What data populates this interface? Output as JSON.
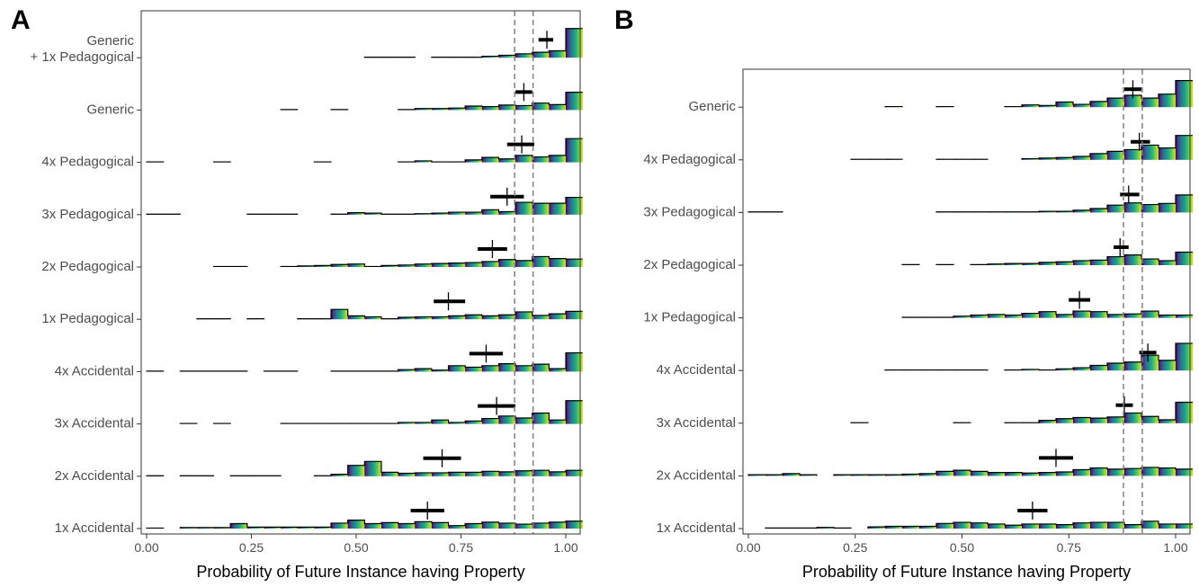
{
  "chart_data": [
    {
      "type": "histogram-ridgeline",
      "panel": "A",
      "xlabel": "Probability of Future Instance having Property",
      "xlim": [
        0,
        1.03
      ],
      "xticks": [
        0.0,
        0.25,
        0.5,
        0.75,
        1.0
      ],
      "xtick_labels": [
        "0.00",
        "0.25",
        "0.50",
        "0.75",
        "1.00"
      ],
      "reference_lines": [
        0.878,
        0.922
      ],
      "grid": false,
      "legend": "none",
      "bins": [
        0.0,
        0.04,
        0.08,
        0.12,
        0.16,
        0.2,
        0.24,
        0.28,
        0.32,
        0.36,
        0.4,
        0.44,
        0.48,
        0.52,
        0.56,
        0.6,
        0.64,
        0.68,
        0.72,
        0.76,
        0.8,
        0.84,
        0.88,
        0.92,
        0.96,
        1.0
      ],
      "bin_width": 0.04,
      "conditions": [
        {
          "label": "1x Accidental",
          "mean": 0.67,
          "ci": [
            0.63,
            0.71
          ],
          "heights": [
            0.1,
            0,
            0.2,
            0.2,
            0.2,
            1,
            0.3,
            0.3,
            0.3,
            0.3,
            0.3,
            1.1,
            1.7,
            1,
            1.2,
            1,
            1.4,
            1.2,
            0.6,
            1,
            1.3,
            1.1,
            0.9,
            1.1,
            1.3,
            1.5
          ]
        },
        {
          "label": "2x Accidental",
          "mean": 0.705,
          "ci": [
            0.66,
            0.75
          ],
          "heights": [
            0.1,
            0,
            0.1,
            0.1,
            0,
            0.1,
            0.1,
            0.1,
            0,
            0,
            0.1,
            0.4,
            2.2,
            3,
            0.8,
            0.6,
            0.7,
            0.7,
            0.8,
            0.8,
            1,
            0.9,
            1.1,
            1.2,
            0.9,
            1.2
          ]
        },
        {
          "label": "3x Accidental",
          "mean": 0.835,
          "ci": [
            0.79,
            0.88
          ],
          "heights": [
            0,
            0,
            0.1,
            0,
            0.1,
            0,
            0,
            0,
            0.1,
            0.1,
            0.1,
            0.1,
            0.1,
            0.1,
            0.1,
            0.3,
            0.3,
            0.8,
            0.3,
            0.6,
            1.1,
            1.6,
            1.2,
            2.2,
            0.8,
            4.7
          ]
        },
        {
          "label": "4x Accidental",
          "mean": 0.81,
          "ci": [
            0.77,
            0.85
          ],
          "heights": [
            0.1,
            0,
            0.1,
            0.1,
            0.1,
            0.1,
            0,
            0.1,
            0.1,
            0,
            0,
            0.1,
            0.1,
            0.1,
            0.1,
            0.4,
            0.6,
            0.3,
            1.2,
            0.9,
            1.2,
            1.6,
            1.2,
            1.5,
            0.6,
            3.8
          ]
        },
        {
          "label": "1x Pedagogical",
          "mean": 0.72,
          "ci": [
            0.685,
            0.76
          ],
          "heights": [
            0,
            0,
            0,
            0.1,
            0.1,
            0,
            0.1,
            0,
            0,
            0.1,
            0.1,
            2,
            0.7,
            0.5,
            0.1,
            0.4,
            0.5,
            0.5,
            0.7,
            0.9,
            0.7,
            0.9,
            1.5,
            0.8,
            1.1,
            1.6
          ]
        },
        {
          "label": "2x Pedagogical",
          "mean": 0.825,
          "ci": [
            0.79,
            0.86
          ],
          "heights": [
            0,
            0,
            0,
            0,
            0.1,
            0.1,
            0,
            0,
            0.1,
            0.2,
            0.3,
            0.5,
            0.6,
            0.1,
            0.3,
            0.4,
            0.6,
            0.7,
            0.8,
            0.9,
            1.1,
            1.5,
            1.3,
            2.1,
            1.7,
            1.6
          ]
        },
        {
          "label": "3x Pedagogical",
          "mean": 0.86,
          "ci": [
            0.82,
            0.9
          ],
          "heights": [
            0.1,
            0.1,
            0,
            0,
            0,
            0,
            0.1,
            0.1,
            0.1,
            0,
            0,
            0.1,
            0.4,
            0.3,
            0.1,
            0.1,
            0.2,
            0.3,
            0.5,
            0.5,
            1,
            0.6,
            2.5,
            2.3,
            2.3,
            3.5
          ]
        },
        {
          "label": "4x Pedagogical",
          "mean": 0.895,
          "ci": [
            0.86,
            0.925
          ],
          "heights": [
            0.1,
            0,
            0,
            0,
            0.1,
            0,
            0,
            0,
            0,
            0,
            0.1,
            0,
            0,
            0,
            0,
            0.1,
            0.3,
            0.1,
            0.1,
            0.5,
            1,
            0.7,
            1.4,
            1.1,
            1.4,
            4.8
          ]
        },
        {
          "label": "Generic",
          "mean": 0.9,
          "ci": [
            0.88,
            0.92
          ],
          "heights": [
            0,
            0,
            0,
            0,
            0,
            0,
            0,
            0,
            0.1,
            0,
            0,
            0.1,
            0,
            0,
            0,
            0.1,
            0.3,
            0.3,
            0.4,
            0.8,
            0.7,
            1,
            0.9,
            1.4,
            1.1,
            3.6
          ]
        },
        {
          "label": "Generic\n+ 1x Pedagogical",
          "mean": 0.955,
          "ci": [
            0.935,
            0.97
          ],
          "heights": [
            0,
            0,
            0,
            0,
            0,
            0,
            0,
            0,
            0,
            0,
            0,
            0,
            0,
            0.1,
            0.1,
            0.1,
            0,
            0.1,
            0.1,
            0.1,
            0.3,
            0.5,
            0.8,
            1.1,
            1.4,
            5.9
          ]
        }
      ]
    },
    {
      "type": "histogram-ridgeline",
      "panel": "B",
      "xlabel": "Probability of Future Instance having Property",
      "xlim": [
        0,
        1.03
      ],
      "xticks": [
        0.0,
        0.25,
        0.5,
        0.75,
        1.0
      ],
      "xtick_labels": [
        "0.00",
        "0.25",
        "0.50",
        "0.75",
        "1.00"
      ],
      "reference_lines": [
        0.878,
        0.922
      ],
      "grid": false,
      "legend": "none",
      "bins": [
        0.0,
        0.04,
        0.08,
        0.12,
        0.16,
        0.2,
        0.24,
        0.28,
        0.32,
        0.36,
        0.4,
        0.44,
        0.48,
        0.52,
        0.56,
        0.6,
        0.64,
        0.68,
        0.72,
        0.76,
        0.8,
        0.84,
        0.88,
        0.92,
        0.96,
        1.0
      ],
      "bin_width": 0.04,
      "conditions": [
        {
          "label": "1x Accidental",
          "mean": 0.665,
          "ci": [
            0.63,
            0.7
          ],
          "heights": [
            0,
            0.1,
            0.1,
            0.1,
            0.2,
            0.1,
            0,
            0.3,
            0.4,
            0.4,
            0.4,
            0.9,
            1.1,
            1,
            0.8,
            0.6,
            0.8,
            0.8,
            0.7,
            1,
            1.1,
            1.1,
            0.7,
            1.3,
            0.8,
            0.8
          ]
        },
        {
          "label": "2x Accidental",
          "mean": 0.72,
          "ci": [
            0.68,
            0.76
          ],
          "heights": [
            0.2,
            0.2,
            0.4,
            0.2,
            0,
            0.2,
            0.2,
            0.2,
            0.2,
            0.3,
            0.4,
            0.8,
            1,
            0.8,
            0.6,
            0.6,
            0.5,
            0.6,
            0.7,
            1.1,
            1.4,
            1.2,
            1.3,
            1.5,
            1.4,
            1.2
          ]
        },
        {
          "label": "3x Accidental",
          "mean": 0.88,
          "ci": [
            0.86,
            0.9
          ],
          "heights": [
            0,
            0,
            0,
            0,
            0,
            0,
            0.1,
            0,
            0,
            0,
            0,
            0,
            0.1,
            0,
            0,
            0.1,
            0.1,
            0.5,
            0.8,
            1,
            0.9,
            1.1,
            1.8,
            1.2,
            0.6,
            3.7
          ]
        },
        {
          "label": "4x Accidental",
          "mean": 0.935,
          "ci": [
            0.915,
            0.955
          ],
          "heights": [
            0,
            0,
            0,
            0,
            0,
            0,
            0,
            0,
            0.1,
            0.1,
            0.1,
            0.1,
            0.1,
            0.1,
            0,
            0.1,
            0.2,
            0.1,
            0.3,
            0.5,
            0.9,
            1.3,
            1.5,
            2.7,
            1.8,
            4.8
          ]
        },
        {
          "label": "1x Pedagogical",
          "mean": 0.775,
          "ci": [
            0.75,
            0.8
          ],
          "heights": [
            0,
            0,
            0,
            0,
            0,
            0,
            0,
            0,
            0,
            0.1,
            0.1,
            0.1,
            0.3,
            0.5,
            0.6,
            0.5,
            0.8,
            1.1,
            0.6,
            1.2,
            1.1,
            0.6,
            0.7,
            1.2,
            0.5,
            0.5
          ]
        },
        {
          "label": "2x Pedagogical",
          "mean": 0.87,
          "ci": [
            0.855,
            0.89
          ],
          "heights": [
            0,
            0,
            0,
            0,
            0,
            0,
            0,
            0,
            0,
            0.1,
            0,
            0.1,
            0,
            0.1,
            0.2,
            0.3,
            0.3,
            0.5,
            0.6,
            0.8,
            0.9,
            1.5,
            1.8,
            1.1,
            0.8,
            2.3
          ]
        },
        {
          "label": "3x Pedagogical",
          "mean": 0.89,
          "ci": [
            0.87,
            0.915
          ],
          "heights": [
            0.1,
            0.1,
            0,
            0,
            0,
            0,
            0,
            0,
            0,
            0,
            0,
            0.1,
            0.1,
            0.1,
            0.1,
            0.1,
            0.1,
            0.2,
            0.2,
            0.4,
            0.7,
            1.3,
            1.7,
            1.4,
            1.6,
            3.1
          ]
        },
        {
          "label": "4x Pedagogical",
          "mean": 0.915,
          "ci": [
            0.895,
            0.94
          ],
          "heights": [
            0,
            0,
            0,
            0,
            0,
            0,
            0.1,
            0.1,
            0.1,
            0,
            0,
            0.1,
            0.1,
            0.1,
            0,
            0,
            0.2,
            0.3,
            0.4,
            0.6,
            1.1,
            1.5,
            1.8,
            2.6,
            2.1,
            4.3
          ]
        },
        {
          "label": "Generic",
          "mean": 0.9,
          "ci": [
            0.88,
            0.92
          ],
          "heights": [
            0,
            0,
            0,
            0,
            0,
            0,
            0,
            0,
            0.1,
            0,
            0,
            0.1,
            0,
            0,
            0,
            0.1,
            0.4,
            0.3,
            0.9,
            0.5,
            1,
            1.6,
            2.1,
            1.6,
            2.3,
            4.7
          ]
        }
      ]
    }
  ]
}
